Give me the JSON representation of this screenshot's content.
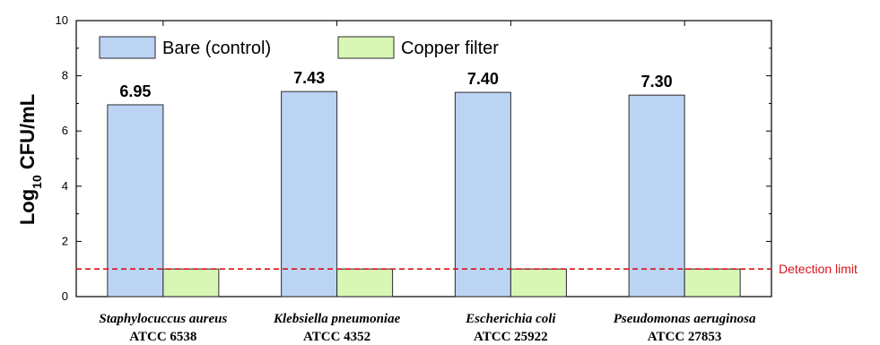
{
  "chart_data": {
    "type": "bar",
    "categories": [
      {
        "name": "Staphylocuccus aureus",
        "strain": "ATCC 6538"
      },
      {
        "name": "Klebsiella pneumoniae",
        "strain": "ATCC 4352"
      },
      {
        "name": "Escherichia coli",
        "strain": "ATCC 25922"
      },
      {
        "name": "Pseudomonas aeruginosa",
        "strain": "ATCC 27853"
      }
    ],
    "series": [
      {
        "name": "Bare (control)",
        "values": [
          6.95,
          7.43,
          7.4,
          7.3
        ],
        "color": "#bcd4f4",
        "labels": [
          "6.95",
          "7.43",
          "7.40",
          "7.30"
        ]
      },
      {
        "name": "Copper filter",
        "values": [
          1.0,
          1.0,
          1.0,
          1.0
        ],
        "color": "#d8f7b4"
      }
    ],
    "ylabel": {
      "main": "Log",
      "sub": "10",
      "rest": " CFU/mL"
    },
    "ylim": [
      0,
      10
    ],
    "yticks": [
      "0",
      "2",
      "4",
      "6",
      "8",
      "10"
    ],
    "reference_line": {
      "value": 1.0,
      "label": "Detection limit",
      "color": "#d8141b"
    },
    "legend_position": "top-left",
    "grid": false
  }
}
